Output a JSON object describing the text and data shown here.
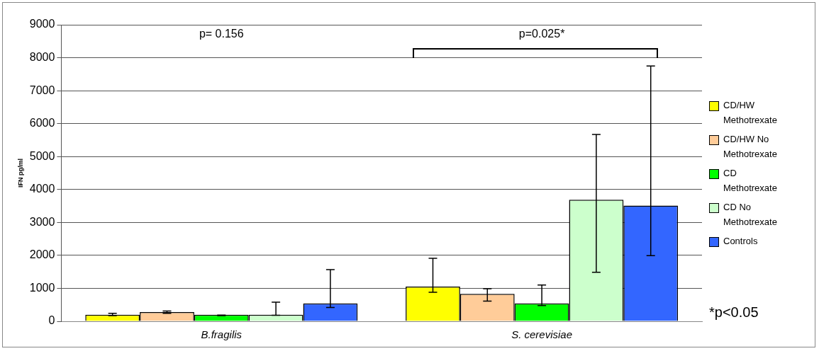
{
  "chart_data": {
    "type": "bar",
    "ylabel": "IFN pg/ml",
    "categories": [
      "B.fragilis",
      "S. cerevisiae"
    ],
    "series": [
      {
        "name": "CD/HW Methotrexate",
        "color": "#ffff00",
        "values": [
          200,
          1050
        ],
        "errors": [
          [
            170,
            240
          ],
          [
            880,
            1910
          ]
        ]
      },
      {
        "name": "CD/HW No Methotrexate",
        "color": "#ffcc99",
        "values": [
          280,
          830
        ],
        "errors": [
          [
            240,
            310
          ],
          [
            610,
            990
          ]
        ]
      },
      {
        "name": "CD Methotrexate",
        "color": "#00ff00",
        "values": [
          200,
          540
        ],
        "errors": [
          [
            170,
            190
          ],
          [
            480,
            1100
          ]
        ]
      },
      {
        "name": "CD No Methotrexate",
        "color": "#ccffcc",
        "values": [
          200,
          3690
        ],
        "errors": [
          [
            180,
            580
          ],
          [
            1490,
            5670
          ]
        ]
      },
      {
        "name": "Controls",
        "color": "#3366ff",
        "values": [
          540,
          3510
        ],
        "errors": [
          [
            420,
            1570
          ],
          [
            1990,
            7750
          ]
        ]
      }
    ],
    "ylim": [
      0,
      9000
    ],
    "yticks": [
      0,
      1000,
      2000,
      3000,
      4000,
      5000,
      6000,
      7000,
      8000,
      9000
    ],
    "grid": "y",
    "legend": "right",
    "annotations": [
      "p= 0.156",
      "p=0.025*",
      "*p<0.05"
    ]
  }
}
